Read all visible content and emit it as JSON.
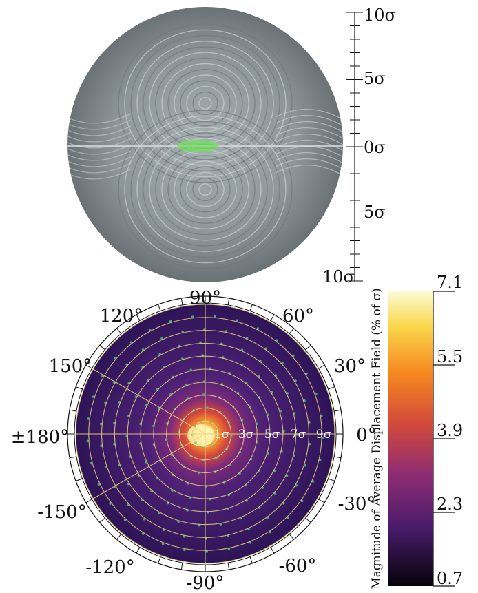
{
  "top_scale": {
    "ticks": [
      "10σ",
      "5σ",
      "0σ",
      "5σ",
      "10σ"
    ]
  },
  "polar": {
    "angle_labels": [
      "90°",
      "60°",
      "30°",
      "0°",
      "-30°",
      "-60°",
      "-90°",
      "-120°",
      "-150°",
      "±180°",
      "150°",
      "120°"
    ],
    "ring_labels": [
      "1σ",
      "3σ",
      "5σ",
      "7σ",
      "9σ"
    ]
  },
  "colorbar": {
    "title": "Magnitude of Average Displacement Field (% of σ)",
    "ticks": [
      "7.1",
      "5.5",
      "3.9",
      "2.3",
      "0.7"
    ]
  },
  "colors": {
    "top_field": "#8e979b",
    "polar_bg": "#3a1a66",
    "hot_core": "#fff6b5",
    "grid": "#e8d27a",
    "arrows": "#48c27a"
  }
}
